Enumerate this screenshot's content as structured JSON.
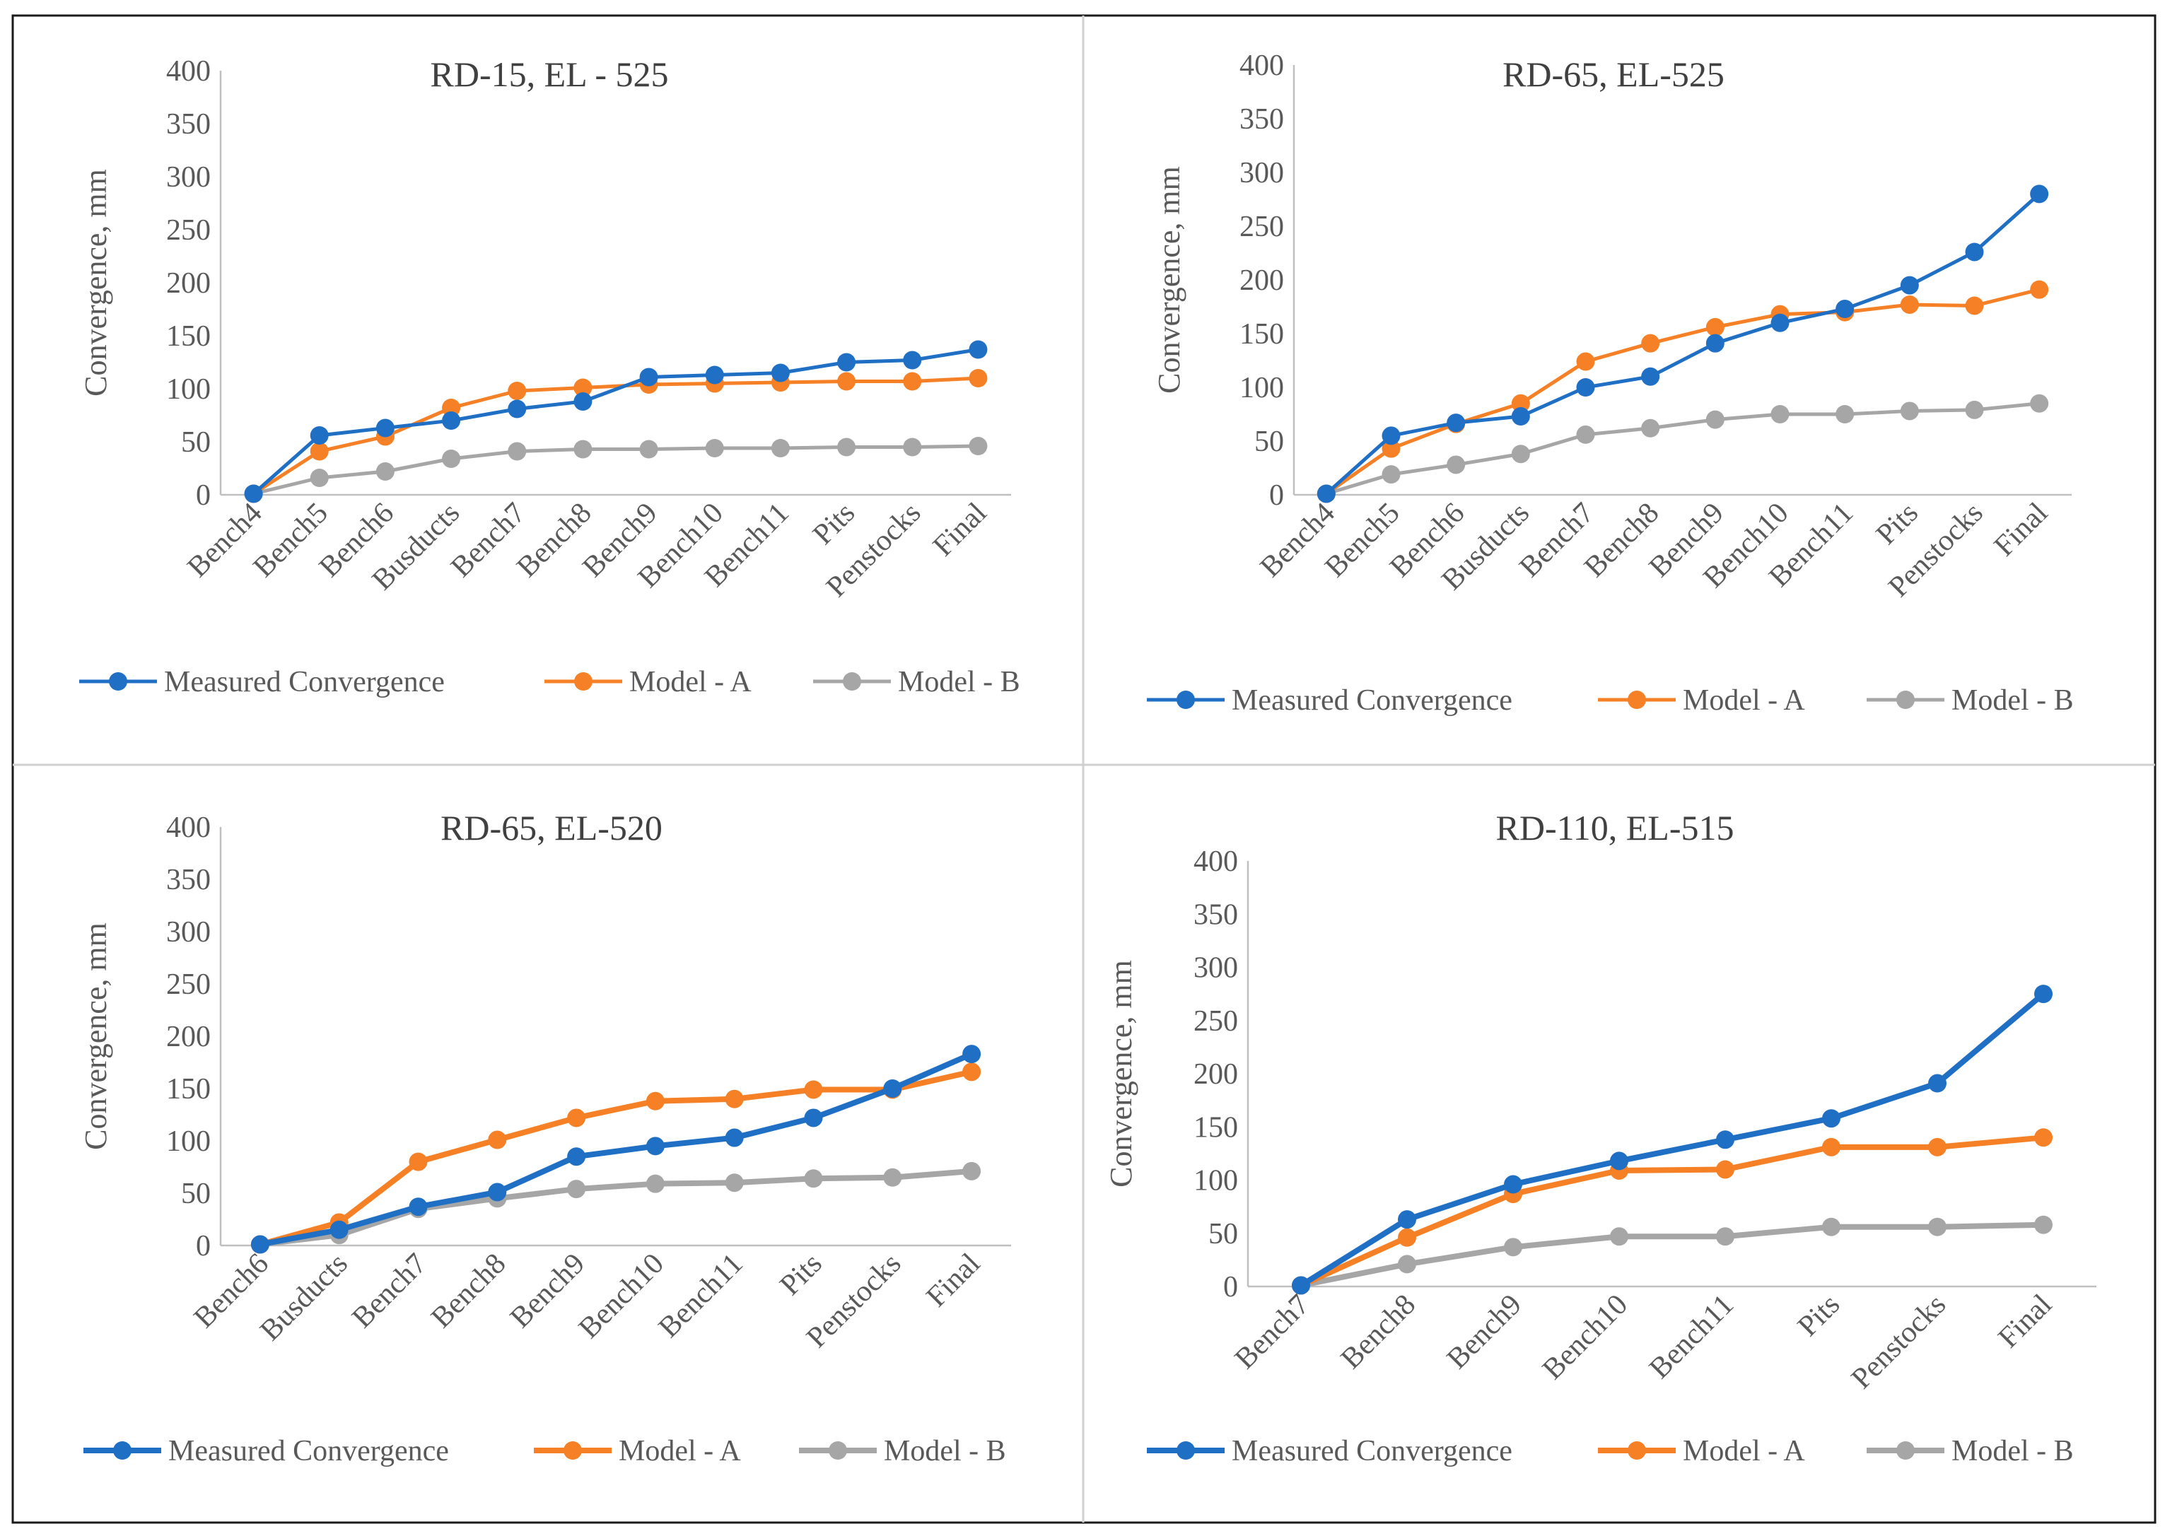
{
  "colors": {
    "measured": "#1f6fc5",
    "model_a": "#f58025",
    "model_b": "#a6a6a6"
  },
  "legend": [
    "Measured Convergence",
    "Model - A",
    "Model - B"
  ],
  "chart_data": [
    {
      "type": "line",
      "title": "RD-15, EL  - 525",
      "xlabel": "",
      "ylabel": "Convergence, mm",
      "ylim": [
        0,
        400
      ],
      "yticks": [
        0,
        50,
        100,
        150,
        200,
        250,
        300,
        350,
        400
      ],
      "grid": false,
      "legend_position": "bottom",
      "categories": [
        "Bench4",
        "Bench5",
        "Bench6",
        "Busducts",
        "Bench7",
        "Bench8",
        "Bench9",
        "Bench10",
        "Bench11",
        "Pits",
        "Penstocks",
        "Final"
      ],
      "series": [
        {
          "name": "Measured Convergence",
          "values": [
            1,
            56,
            63,
            70,
            81,
            88,
            111,
            113,
            115,
            125,
            127,
            137
          ]
        },
        {
          "name": "Model - A",
          "values": [
            1,
            41,
            55,
            82,
            98,
            101,
            104,
            105,
            106,
            107,
            107,
            110
          ]
        },
        {
          "name": "Model - B",
          "values": [
            1,
            16,
            22,
            34,
            41,
            43,
            43,
            44,
            44,
            45,
            45,
            46
          ]
        }
      ]
    },
    {
      "type": "line",
      "title": "RD-65, EL-525",
      "xlabel": "",
      "ylabel": "Convergence, mm",
      "ylim": [
        0,
        400
      ],
      "yticks": [
        0,
        50,
        100,
        150,
        200,
        250,
        300,
        350,
        400
      ],
      "grid": false,
      "legend_position": "bottom",
      "categories": [
        "Bench4",
        "Bench5",
        "Bench6",
        "Busducts",
        "Bench7",
        "Bench8",
        "Bench9",
        "Bench10",
        "Bench11",
        "Pits",
        "Penstocks",
        "Final"
      ],
      "series": [
        {
          "name": "Measured Convergence",
          "values": [
            1,
            55,
            67,
            73,
            100,
            110,
            141,
            160,
            173,
            195,
            226,
            280
          ]
        },
        {
          "name": "Model - A",
          "values": [
            1,
            43,
            66,
            85,
            124,
            141,
            156,
            168,
            170,
            177,
            176,
            191
          ]
        },
        {
          "name": "Model - B",
          "values": [
            1,
            19,
            28,
            38,
            56,
            62,
            70,
            75,
            75,
            78,
            79,
            85
          ]
        }
      ]
    },
    {
      "type": "line",
      "title": "RD-65, EL-520",
      "xlabel": "",
      "ylabel": "Convergence, mm",
      "ylim": [
        0,
        400
      ],
      "yticks": [
        0,
        50,
        100,
        150,
        200,
        250,
        300,
        350,
        400
      ],
      "grid": false,
      "legend_position": "bottom",
      "categories": [
        "Bench6",
        "Busducts",
        "Bench7",
        "Bench8",
        "Bench9",
        "Bench10",
        "Bench11",
        "Pits",
        "Penstocks",
        "Final"
      ],
      "series": [
        {
          "name": "Measured Convergence",
          "values": [
            1,
            15,
            37,
            51,
            85,
            95,
            103,
            122,
            150,
            183
          ]
        },
        {
          "name": "Model - A",
          "values": [
            1,
            22,
            80,
            101,
            122,
            138,
            140,
            149,
            149,
            166
          ]
        },
        {
          "name": "Model - B",
          "values": [
            1,
            10,
            35,
            45,
            54,
            59,
            60,
            64,
            65,
            71
          ]
        }
      ]
    },
    {
      "type": "line",
      "title": "RD-110, EL-515",
      "xlabel": "",
      "ylabel": "Convergence, mm",
      "ylim": [
        0,
        400
      ],
      "yticks": [
        0,
        50,
        100,
        150,
        200,
        250,
        300,
        350,
        400
      ],
      "grid": false,
      "legend_position": "bottom",
      "categories": [
        "Bench7",
        "Bench8",
        "Bench9",
        "Bench10",
        "Bench11",
        "Pits",
        "Penstocks",
        "Final"
      ],
      "series": [
        {
          "name": "Measured Convergence",
          "values": [
            1,
            63,
            96,
            118,
            138,
            158,
            191,
            275
          ]
        },
        {
          "name": "Model - A",
          "values": [
            1,
            46,
            87,
            109,
            110,
            131,
            131,
            140
          ]
        },
        {
          "name": "Model - B",
          "values": [
            1,
            21,
            37,
            47,
            47,
            56,
            56,
            58
          ]
        }
      ]
    }
  ]
}
